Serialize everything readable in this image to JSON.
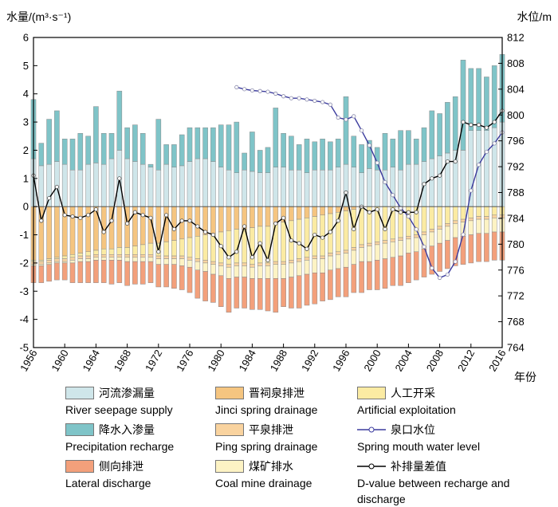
{
  "chart_data": {
    "type": "bar+line",
    "y_left_label": "水量/(m³·s⁻¹)",
    "y_right_label": "水位/m",
    "x_unit_label": "年份",
    "x_range": [
      1956,
      2016
    ],
    "x_ticks": [
      "1956",
      "1960",
      "1964",
      "1968",
      "1972",
      "1976",
      "1980",
      "1984",
      "1988",
      "1992",
      "1996",
      "2000",
      "2004",
      "2008",
      "2012",
      "2016"
    ],
    "ylim_left": [
      -5,
      6
    ],
    "y_left_ticks": [
      "-5",
      "-4",
      "-3",
      "-2",
      "-1",
      "0",
      "1",
      "2",
      "3",
      "4",
      "5",
      "6"
    ],
    "ylim_right": [
      764,
      812
    ],
    "y_right_ticks": [
      "764",
      "768",
      "772",
      "776",
      "780",
      "784",
      "788",
      "792",
      "796",
      "800",
      "804",
      "808",
      "812"
    ],
    "years": [
      1956,
      1957,
      1958,
      1959,
      1960,
      1961,
      1962,
      1963,
      1964,
      1965,
      1966,
      1967,
      1968,
      1969,
      1970,
      1971,
      1972,
      1973,
      1974,
      1975,
      1976,
      1977,
      1978,
      1979,
      1980,
      1981,
      1982,
      1983,
      1984,
      1985,
      1986,
      1987,
      1988,
      1989,
      1990,
      1991,
      1992,
      1993,
      1994,
      1995,
      1996,
      1997,
      1998,
      1999,
      2000,
      2001,
      2002,
      2003,
      2004,
      2005,
      2006,
      2007,
      2008,
      2009,
      2010,
      2011,
      2012,
      2013,
      2014,
      2015,
      2016
    ],
    "series": [
      {
        "name_cn": "河流渗漏量",
        "name_en": "River seepage supply",
        "kind": "bar",
        "color": "#cfe6ea",
        "values": [
          1.7,
          1.45,
          1.5,
          1.6,
          1.5,
          1.3,
          1.3,
          1.5,
          1.55,
          1.5,
          1.7,
          2.0,
          1.7,
          1.6,
          1.5,
          1.4,
          1.3,
          1.5,
          1.4,
          1.45,
          1.6,
          1.7,
          1.7,
          1.6,
          1.4,
          1.3,
          1.2,
          1.3,
          1.25,
          1.2,
          1.2,
          1.4,
          1.4,
          1.3,
          1.3,
          1.2,
          1.3,
          1.3,
          1.3,
          1.4,
          1.5,
          1.4,
          1.2,
          1.35,
          1.3,
          1.3,
          1.4,
          1.3,
          1.5,
          1.5,
          1.6,
          1.7,
          1.8,
          1.9,
          2.0,
          2.0,
          2.7,
          2.7,
          2.7,
          2.8,
          3.0
        ]
      },
      {
        "name_cn": "降水入渗量",
        "name_en": "Precipitation recharge",
        "kind": "bar",
        "color": "#7fc4c8",
        "values": [
          2.1,
          0.8,
          1.6,
          1.8,
          0.9,
          1.1,
          1.3,
          1.0,
          2.0,
          1.1,
          0.9,
          2.1,
          1.1,
          1.3,
          1.1,
          0.1,
          1.8,
          0.7,
          0.8,
          1.1,
          1.2,
          1.1,
          1.1,
          1.2,
          1.5,
          1.6,
          1.8,
          0.6,
          1.4,
          0.8,
          0.9,
          2.1,
          1.2,
          1.2,
          0.9,
          1.2,
          1.0,
          1.1,
          1.0,
          1.0,
          2.4,
          1.1,
          1.0,
          1.0,
          0.8,
          1.3,
          1.0,
          1.4,
          1.2,
          0.9,
          1.2,
          1.7,
          1.5,
          1.8,
          1.9,
          3.2,
          2.2,
          2.2,
          1.9,
          2.2,
          2.4
        ]
      },
      {
        "name_cn": "晋祠泉排泄",
        "name_en": "Jinci spring drainage",
        "kind": "bar",
        "color": "#f5c580",
        "values": [
          -1.9,
          -1.9,
          -1.85,
          -1.8,
          -1.75,
          -1.7,
          -1.65,
          -1.6,
          -1.55,
          -1.5,
          -1.5,
          -1.45,
          -1.45,
          -1.4,
          -1.35,
          -1.3,
          -1.3,
          -1.25,
          -1.2,
          -1.15,
          -1.1,
          -1.05,
          -1.0,
          -0.95,
          -0.9,
          -0.85,
          -0.8,
          -0.8,
          -0.75,
          -0.7,
          -0.7,
          -0.6,
          -0.55,
          -0.5,
          -0.45,
          -0.4,
          -0.35,
          -0.3,
          -0.25,
          -0.2,
          -0.15,
          -0.1,
          -0.05,
          0,
          0,
          0,
          0,
          0,
          0,
          0,
          0,
          0,
          0,
          0,
          0,
          0,
          0,
          0,
          0,
          0,
          0
        ]
      },
      {
        "name_cn": "人工开采",
        "name_en": "Artificial exploitation",
        "kind": "bar",
        "color": "#fbeba3",
        "values": [
          -0.05,
          -0.05,
          -0.05,
          -0.05,
          -0.1,
          -0.1,
          -0.1,
          -0.15,
          -0.15,
          -0.2,
          -0.2,
          -0.25,
          -0.25,
          -0.3,
          -0.35,
          -0.4,
          -0.45,
          -0.5,
          -0.55,
          -0.6,
          -0.7,
          -0.8,
          -0.9,
          -1.0,
          -1.1,
          -1.2,
          -1.2,
          -1.2,
          -1.3,
          -1.3,
          -1.3,
          -1.35,
          -1.4,
          -1.4,
          -1.4,
          -1.4,
          -1.4,
          -1.45,
          -1.4,
          -1.4,
          -1.4,
          -1.35,
          -1.3,
          -1.3,
          -1.25,
          -1.2,
          -1.15,
          -1.1,
          -1.05,
          -1.0,
          -0.9,
          -0.8,
          -0.7,
          -0.6,
          -0.5,
          -0.45,
          -0.4,
          -0.35,
          -0.35,
          -0.3,
          -0.3
        ]
      },
      {
        "name_cn": "平泉排泄",
        "name_en": "Ping spring drainage",
        "kind": "bar",
        "color": "#f9d39f",
        "values": [
          -0.1,
          -0.1,
          -0.1,
          -0.1,
          -0.1,
          -0.1,
          -0.1,
          -0.1,
          -0.1,
          -0.1,
          -0.1,
          -0.1,
          -0.1,
          -0.1,
          -0.1,
          -0.1,
          -0.1,
          -0.1,
          -0.1,
          -0.1,
          -0.1,
          -0.1,
          -0.1,
          -0.1,
          -0.1,
          -0.1,
          -0.1,
          -0.1,
          -0.1,
          -0.1,
          -0.1,
          -0.1,
          -0.1,
          -0.1,
          -0.1,
          -0.1,
          -0.1,
          -0.1,
          -0.1,
          -0.1,
          -0.1,
          -0.1,
          -0.1,
          -0.1,
          -0.1,
          -0.1,
          -0.1,
          -0.1,
          -0.1,
          -0.1,
          -0.1,
          -0.1,
          -0.1,
          -0.1,
          -0.1,
          -0.1,
          -0.1,
          -0.1,
          -0.1,
          -0.1,
          -0.1
        ]
      },
      {
        "name_cn": "煤矿排水",
        "name_en": "Coal mine drainage",
        "kind": "bar",
        "color": "#fdf3c4",
        "values": [
          -0.05,
          -0.05,
          -0.05,
          -0.05,
          -0.05,
          -0.1,
          -0.1,
          -0.1,
          -0.1,
          -0.1,
          -0.1,
          -0.1,
          -0.15,
          -0.15,
          -0.15,
          -0.15,
          -0.2,
          -0.2,
          -0.2,
          -0.25,
          -0.25,
          -0.3,
          -0.3,
          -0.35,
          -0.35,
          -0.4,
          -0.4,
          -0.4,
          -0.4,
          -0.45,
          -0.45,
          -0.5,
          -0.5,
          -0.5,
          -0.5,
          -0.5,
          -0.5,
          -0.5,
          -0.5,
          -0.5,
          -0.5,
          -0.5,
          -0.5,
          -0.55,
          -0.55,
          -0.55,
          -0.55,
          -0.55,
          -0.5,
          -0.5,
          -0.5,
          -0.5,
          -0.5,
          -0.5,
          -0.5,
          -0.5,
          -0.5,
          -0.5,
          -0.5,
          -0.5,
          -0.5
        ]
      },
      {
        "name_cn": "侧向排泄",
        "name_en": "Lateral discharge",
        "kind": "bar",
        "color": "#f3a07b",
        "values": [
          -0.6,
          -0.6,
          -0.6,
          -0.6,
          -0.6,
          -0.7,
          -0.75,
          -0.75,
          -0.8,
          -0.8,
          -0.85,
          -0.8,
          -0.85,
          -0.8,
          -0.8,
          -0.75,
          -0.8,
          -0.8,
          -0.85,
          -0.85,
          -0.9,
          -1.0,
          -1.05,
          -1.0,
          -1.1,
          -1.2,
          -1.1,
          -1.1,
          -1.1,
          -1.1,
          -1.15,
          -1.2,
          -1.0,
          -1.1,
          -1.15,
          -1.1,
          -1.1,
          -1.0,
          -1.05,
          -1.0,
          -1.05,
          -1.0,
          -1.1,
          -1.0,
          -1.05,
          -1.05,
          -1.0,
          -1.05,
          -1.05,
          -1.0,
          -1.0,
          -1.0,
          -1.0,
          -1.0,
          -1.0,
          -1.0,
          -1.0,
          -1.0,
          -1.0,
          -1.0,
          -1.0
        ]
      },
      {
        "name_cn": "泉口水位",
        "name_en": "Spring mouth water level",
        "kind": "line",
        "axis": "right",
        "color": "#3b3b9e",
        "years": [
          1982,
          1983,
          1984,
          1985,
          1986,
          1987,
          1988,
          1989,
          1990,
          1991,
          1992,
          1993,
          1994,
          1995,
          1996,
          1997,
          1998,
          1999,
          2000,
          2001,
          2002,
          2003,
          2004,
          2005,
          2006,
          2007,
          2008,
          2009,
          2010,
          2011,
          2012,
          2013,
          2014,
          2015,
          2016
        ],
        "values": [
          804.3,
          804.0,
          803.8,
          803.7,
          803.6,
          803.3,
          802.9,
          802.6,
          802.6,
          802.4,
          802.2,
          802.0,
          801.6,
          799.6,
          799.3,
          799.8,
          797.6,
          795.3,
          792.6,
          789.6,
          787.6,
          785.6,
          784.3,
          782.3,
          779.6,
          776.3,
          774.8,
          775.3,
          777.3,
          781.5,
          788.3,
          792.3,
          794.3,
          795.6,
          797.3
        ]
      },
      {
        "name_cn": "补排量差值",
        "name_en": "D-value between recharge and discharge",
        "kind": "line",
        "axis": "left",
        "color": "#000000",
        "values": [
          1.1,
          -0.5,
          0.3,
          0.7,
          -0.3,
          -0.35,
          -0.4,
          -0.3,
          -0.1,
          -0.9,
          -0.5,
          1.0,
          -0.6,
          -0.2,
          -0.3,
          -0.4,
          -1.6,
          -0.3,
          -0.8,
          -0.5,
          -0.5,
          -0.7,
          -0.9,
          -1.0,
          -1.4,
          -1.8,
          -1.6,
          -0.7,
          -1.8,
          -1.3,
          -1.9,
          -0.6,
          -0.4,
          -1.2,
          -1.3,
          -1.5,
          -1.0,
          -1.1,
          -0.9,
          -0.5,
          0.5,
          -0.8,
          0.0,
          -0.2,
          -0.1,
          -0.8,
          -0.1,
          -0.2,
          -0.2,
          -0.2,
          0.8,
          1.0,
          1.1,
          1.6,
          1.6,
          3.0,
          2.9,
          2.9,
          2.8,
          3.0,
          3.4
        ]
      }
    ]
  }
}
